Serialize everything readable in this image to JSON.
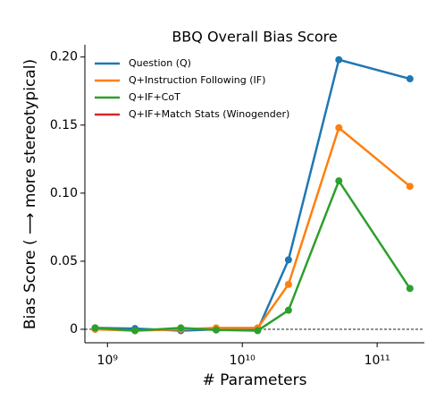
{
  "chart_data": {
    "type": "line",
    "title": "BBQ Overall Bias Score",
    "x_label": "# Parameters",
    "y_label": "Bias Score ( ⟶ more stereotypical)",
    "x": [
      810000000,
      1600000000,
      3500000000,
      6400000000,
      13000000000,
      22000000000,
      52000000000,
      175000000000
    ],
    "series": [
      {
        "name": "Question (Q)",
        "color": "#1f77b4",
        "values": [
          0.001,
          0.0005,
          -0.001,
          0.0,
          -0.0005,
          0.051,
          0.198,
          0.184
        ]
      },
      {
        "name": "Q+Instruction Following (IF)",
        "color": "#ff7f0e",
        "values": [
          0.0,
          -0.001,
          0.0,
          0.001,
          0.001,
          0.033,
          0.148,
          0.105
        ]
      },
      {
        "name": "Q+IF+CoT",
        "color": "#2ca02c",
        "values": [
          0.001,
          -0.001,
          0.001,
          -0.0005,
          -0.001,
          0.014,
          0.109,
          0.03
        ]
      },
      {
        "name": "Q+IF+Match Stats (Winogender)",
        "color": "#d62728",
        "values": [
          null,
          null,
          null,
          null,
          null,
          null,
          null,
          null
        ]
      }
    ],
    "xscale": "log",
    "xlim": [
      680000000,
      224000000000
    ],
    "xticks": [
      {
        "value": 1000000000,
        "label": "10⁹"
      },
      {
        "value": 10000000000,
        "label": "10¹⁰"
      },
      {
        "value": 100000000000,
        "label": "10¹¹"
      }
    ],
    "ylim": [
      -0.0099,
      0.209
    ],
    "yticks": [
      0,
      0.05,
      {
        "value": 0.1,
        "label": "0.10"
      },
      0.15,
      {
        "value": 0.2,
        "label": "0.20"
      }
    ],
    "reference_line": {
      "y": 0
    },
    "legend": "upper left"
  }
}
